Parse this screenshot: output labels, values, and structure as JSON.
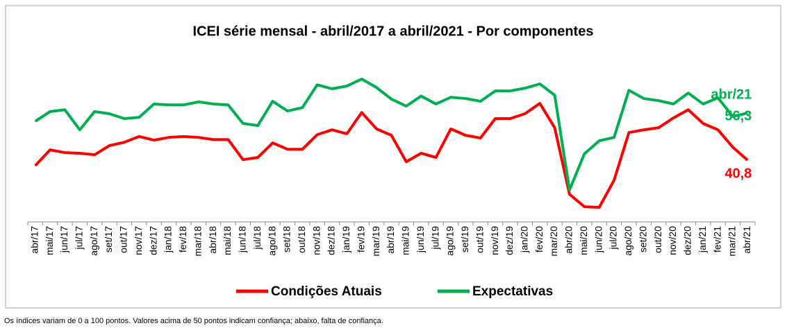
{
  "chart_data": {
    "type": "line",
    "title": "ICEI série mensal - abril/2017 a abril/2021 - Por componentes",
    "categories": [
      "abr/17",
      "mai/17",
      "jun/17",
      "jul/17",
      "ago/17",
      "set/17",
      "out/17",
      "nov/17",
      "dez/17",
      "jan/18",
      "fev/18",
      "mar/18",
      "abr/18",
      "mai/18",
      "jun/18",
      "jul/18",
      "ago/18",
      "set/18",
      "out/18",
      "nov/18",
      "dez/18",
      "jan/19",
      "fev/19",
      "mar/19",
      "abr/19",
      "mai/19",
      "jun/19",
      "jul/19",
      "ago/19",
      "set/19",
      "out/19",
      "nov/19",
      "dez/19",
      "jan/20",
      "fev/20",
      "mar/20",
      "abr/20",
      "mai/20",
      "jun/20",
      "jul/20",
      "ago/20",
      "set/20",
      "out/20",
      "nov/20",
      "dez/20",
      "jan/21",
      "fev/21",
      "mar/21",
      "abr/21"
    ],
    "series": [
      {
        "name": "Condições Atuais",
        "color": "#ff0000",
        "values": [
          39.0,
          44.2,
          43.3,
          43.1,
          42.6,
          45.6,
          46.7,
          48.6,
          47.4,
          48.3,
          48.6,
          48.3,
          47.6,
          47.6,
          41.0,
          41.7,
          46.5,
          44.4,
          44.4,
          49.2,
          50.8,
          49.5,
          56.5,
          51.1,
          49.0,
          40.3,
          43.1,
          41.7,
          51.1,
          49.0,
          48.1,
          54.5,
          54.5,
          56.1,
          59.5,
          51.5,
          29.6,
          25.5,
          25.3,
          34.2,
          49.9,
          50.8,
          51.5,
          54.7,
          57.4,
          52.9,
          50.8,
          45.1,
          40.8
        ],
        "value_labels": [
          null,
          null,
          null,
          null,
          null,
          null,
          null,
          null,
          null,
          null,
          null,
          null,
          null,
          null,
          null,
          null,
          null,
          null,
          null,
          null,
          null,
          null,
          null,
          null,
          null,
          null,
          null,
          null,
          null,
          null,
          null,
          null,
          null,
          null,
          null,
          null,
          null,
          null,
          null,
          null,
          null,
          null,
          null,
          null,
          null,
          null,
          null,
          null,
          "40,8"
        ]
      },
      {
        "name": "Expectativas",
        "color": "#00b050",
        "values": [
          53.6,
          56.8,
          57.4,
          50.8,
          56.8,
          56.1,
          54.5,
          54.9,
          59.3,
          59.0,
          59.0,
          60.0,
          59.3,
          59.0,
          52.9,
          52.2,
          60.2,
          57.0,
          58.1,
          65.6,
          64.3,
          65.2,
          67.5,
          64.7,
          60.9,
          58.6,
          61.9,
          59.3,
          61.5,
          61.1,
          60.2,
          63.6,
          63.6,
          64.5,
          65.9,
          62.2,
          31.0,
          42.9,
          47.2,
          48.3,
          63.8,
          61.1,
          60.4,
          59.3,
          62.9,
          59.3,
          61.3,
          55.2,
          56.3
        ],
        "value_labels": [
          null,
          null,
          null,
          null,
          null,
          null,
          null,
          null,
          null,
          null,
          null,
          null,
          null,
          null,
          null,
          null,
          null,
          null,
          null,
          null,
          null,
          null,
          null,
          null,
          null,
          null,
          null,
          null,
          null,
          null,
          null,
          null,
          null,
          null,
          null,
          null,
          null,
          null,
          null,
          null,
          null,
          null,
          null,
          null,
          null,
          null,
          null,
          null,
          "56,3"
        ],
        "annotation": "abr/21"
      }
    ],
    "legend": "bottom",
    "footnote": "Os índices variam de 0 a 100 pontos. Valores acima de 50 pontos indicam confiança; abaixo, falta de confiança."
  }
}
